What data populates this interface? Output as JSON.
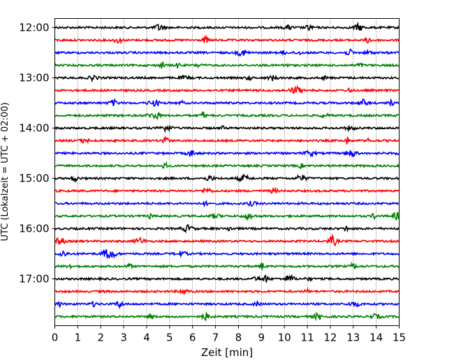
{
  "chart_data": {
    "type": "line",
    "title": "",
    "xlabel": "Zeit  [min]",
    "ylabel": "UTC (Lokalzeit = UTC + 02:00)",
    "xlim": [
      0,
      15
    ],
    "x_ticks": [
      0,
      1,
      2,
      3,
      4,
      5,
      6,
      7,
      8,
      9,
      10,
      11,
      12,
      13,
      14,
      15
    ],
    "x_tick_labels": [
      "0",
      "1",
      "2",
      "3",
      "4",
      "5",
      "6",
      "7",
      "8",
      "9",
      "10",
      "11",
      "12",
      "13",
      "14",
      "15"
    ],
    "y_tick_labels": [
      "12:00",
      "13:00",
      "14:00",
      "15:00",
      "16:00",
      "17:00"
    ],
    "grid": "vertical dotted at each minute",
    "trace_colors": [
      "#000000",
      "#ff0000",
      "#0000ff",
      "#008000"
    ],
    "series": [
      {
        "start_utc": "12:00",
        "color": "#000000"
      },
      {
        "start_utc": "12:15",
        "color": "#ff0000"
      },
      {
        "start_utc": "12:30",
        "color": "#0000ff"
      },
      {
        "start_utc": "12:45",
        "color": "#008000"
      },
      {
        "start_utc": "13:00",
        "color": "#000000"
      },
      {
        "start_utc": "13:15",
        "color": "#ff0000"
      },
      {
        "start_utc": "13:30",
        "color": "#0000ff"
      },
      {
        "start_utc": "13:45",
        "color": "#008000"
      },
      {
        "start_utc": "14:00",
        "color": "#000000"
      },
      {
        "start_utc": "14:15",
        "color": "#ff0000"
      },
      {
        "start_utc": "14:30",
        "color": "#0000ff"
      },
      {
        "start_utc": "14:45",
        "color": "#008000"
      },
      {
        "start_utc": "15:00",
        "color": "#000000"
      },
      {
        "start_utc": "15:15",
        "color": "#ff0000"
      },
      {
        "start_utc": "15:30",
        "color": "#0000ff"
      },
      {
        "start_utc": "15:45",
        "color": "#008000"
      },
      {
        "start_utc": "16:00",
        "color": "#000000"
      },
      {
        "start_utc": "16:15",
        "color": "#ff0000"
      },
      {
        "start_utc": "16:30",
        "color": "#0000ff"
      },
      {
        "start_utc": "16:45",
        "color": "#008000"
      },
      {
        "start_utc": "17:00",
        "color": "#000000"
      },
      {
        "start_utc": "17:15",
        "color": "#ff0000"
      },
      {
        "start_utc": "17:30",
        "color": "#0000ff"
      },
      {
        "start_utc": "17:45",
        "color": "#008000"
      }
    ]
  }
}
